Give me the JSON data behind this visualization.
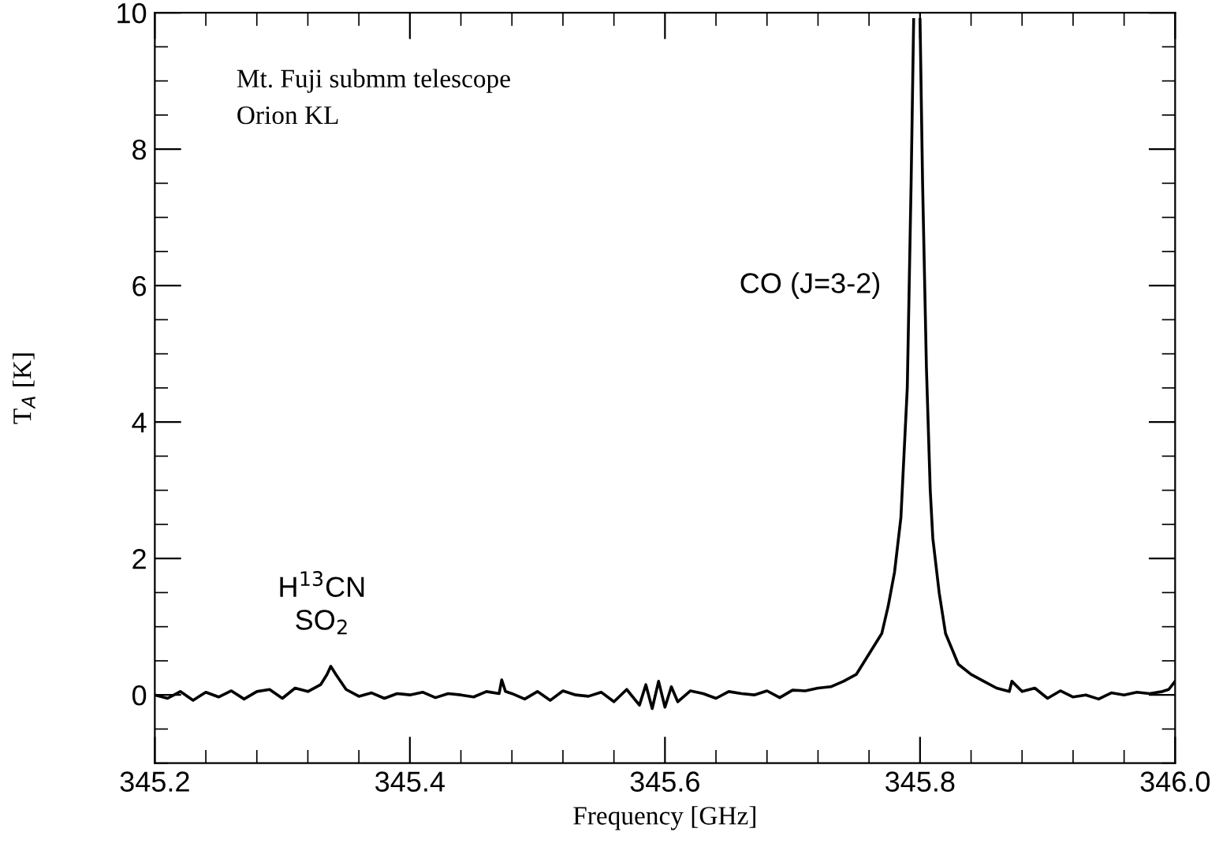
{
  "chart_data": {
    "type": "line",
    "xlabel": "Frequency [GHz]",
    "ylabel": "T$_{A}$ [K]",
    "xlim": [
      345.2,
      346.0
    ],
    "ylim": [
      -1,
      10
    ],
    "xticks": [
      345.2,
      345.4,
      345.6,
      345.8,
      {
        "value": 346,
        "label": "346.0"
      }
    ],
    "yticks": [
      0,
      2,
      4,
      6,
      8,
      10
    ],
    "grid": false,
    "marker": "none",
    "line_style": "solid",
    "series": [
      {
        "color": "#000000",
        "x": [
          345.2,
          345.21,
          345.22,
          345.23,
          345.24,
          345.25,
          345.26,
          345.27,
          345.28,
          345.29,
          345.3,
          345.31,
          345.32,
          345.33,
          345.335,
          345.338,
          345.342,
          345.35,
          345.36,
          345.37,
          345.38,
          345.39,
          345.4,
          345.41,
          345.42,
          345.43,
          345.44,
          345.45,
          345.46,
          345.47,
          345.472,
          345.475,
          345.48,
          345.49,
          345.5,
          345.51,
          345.52,
          345.53,
          345.54,
          345.55,
          345.56,
          345.57,
          345.58,
          345.585,
          345.59,
          345.595,
          345.6,
          345.605,
          345.61,
          345.62,
          345.63,
          345.64,
          345.65,
          345.66,
          345.67,
          345.68,
          345.69,
          345.7,
          345.71,
          345.72,
          345.73,
          345.74,
          345.75,
          345.76,
          345.77,
          345.775,
          345.78,
          345.785,
          345.79,
          345.793,
          345.795,
          345.797,
          345.8,
          345.802,
          345.805,
          345.808,
          345.81,
          345.815,
          345.82,
          345.83,
          345.84,
          345.85,
          345.86,
          345.87,
          345.872,
          345.88,
          345.89,
          345.9,
          345.91,
          345.92,
          345.93,
          345.94,
          345.95,
          345.96,
          345.97,
          345.98,
          345.99,
          345.995,
          346.0
        ],
        "values": [
          0.0,
          -0.05,
          0.05,
          -0.08,
          0.04,
          -0.03,
          0.06,
          -0.06,
          0.05,
          0.08,
          -0.05,
          0.1,
          0.05,
          0.15,
          0.3,
          0.42,
          0.3,
          0.08,
          -0.02,
          0.03,
          -0.05,
          0.02,
          0.0,
          0.04,
          -0.04,
          0.02,
          0.0,
          -0.03,
          0.05,
          0.02,
          0.22,
          0.05,
          0.02,
          -0.06,
          0.05,
          -0.08,
          0.06,
          0.0,
          -0.02,
          0.04,
          -0.1,
          0.08,
          -0.15,
          0.15,
          -0.2,
          0.2,
          -0.18,
          0.12,
          -0.1,
          0.06,
          0.02,
          -0.05,
          0.05,
          0.02,
          0.0,
          0.06,
          -0.04,
          0.07,
          0.06,
          0.1,
          0.12,
          0.2,
          0.3,
          0.6,
          0.9,
          1.3,
          1.8,
          2.6,
          4.5,
          7.5,
          9.9,
          null,
          9.9,
          7.5,
          4.8,
          3.0,
          2.3,
          1.5,
          0.9,
          0.45,
          0.3,
          0.2,
          0.1,
          0.05,
          0.2,
          0.05,
          0.1,
          -0.05,
          0.06,
          -0.03,
          0.0,
          -0.06,
          0.03,
          0.0,
          0.04,
          0.02,
          0.05,
          0.08,
          0.2
        ]
      }
    ],
    "annotations": [
      {
        "text": "H$^{13}$CN\nSO$_{2}$",
        "x": 345.338,
        "y": 0.42
      },
      {
        "text": "CO (J=3-2)",
        "x": 345.79,
        "y": 6
      },
      "Mt. Fuji submm telescope\nOrion KL"
    ]
  }
}
